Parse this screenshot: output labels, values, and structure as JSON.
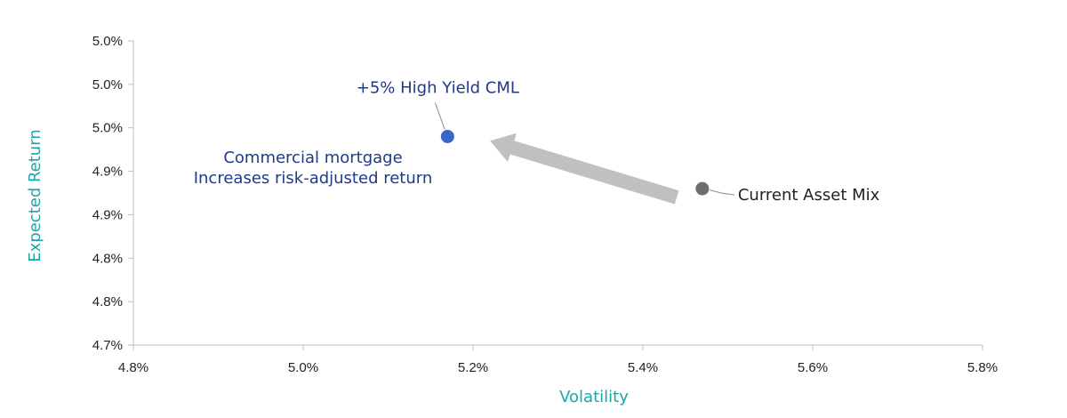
{
  "chart_data": {
    "type": "scatter",
    "xlabel": "Volatility",
    "ylabel": "Expected Return",
    "xlim": [
      4.8,
      5.8
    ],
    "ylim": [
      4.7,
      5.2
    ],
    "x_ticks": [
      4.8,
      5.0,
      5.2,
      5.4,
      5.6,
      5.8
    ],
    "x_tick_labels": [
      "4.8%",
      "5.0%",
      "5.2%",
      "5.4%",
      "5.6%",
      "5.8%"
    ],
    "y_ticks": [
      4.7,
      4.75,
      4.8,
      4.85,
      4.9,
      4.95,
      5.0,
      5.05
    ],
    "y_tick_labels": [
      "4.7%",
      "4.8%",
      "4.8%",
      "4.9%",
      "4.9%",
      "5.0%",
      "5.0%",
      "5.0%"
    ],
    "grid": false,
    "points": [
      {
        "label": "+5% High Yield CML",
        "x": 5.17,
        "y": 4.94,
        "color": "#3a66c4"
      },
      {
        "label": "Current Asset Mix",
        "x": 5.47,
        "y": 4.88,
        "color": "#6e6e6e"
      }
    ],
    "annotations": [
      {
        "text": "Commercial mortgage"
      },
      {
        "text": "Increases risk-adjusted return"
      }
    ],
    "arrow": {
      "from": [
        5.44,
        4.87
      ],
      "to": [
        5.22,
        4.935
      ],
      "color": "#c0c0c0"
    }
  }
}
